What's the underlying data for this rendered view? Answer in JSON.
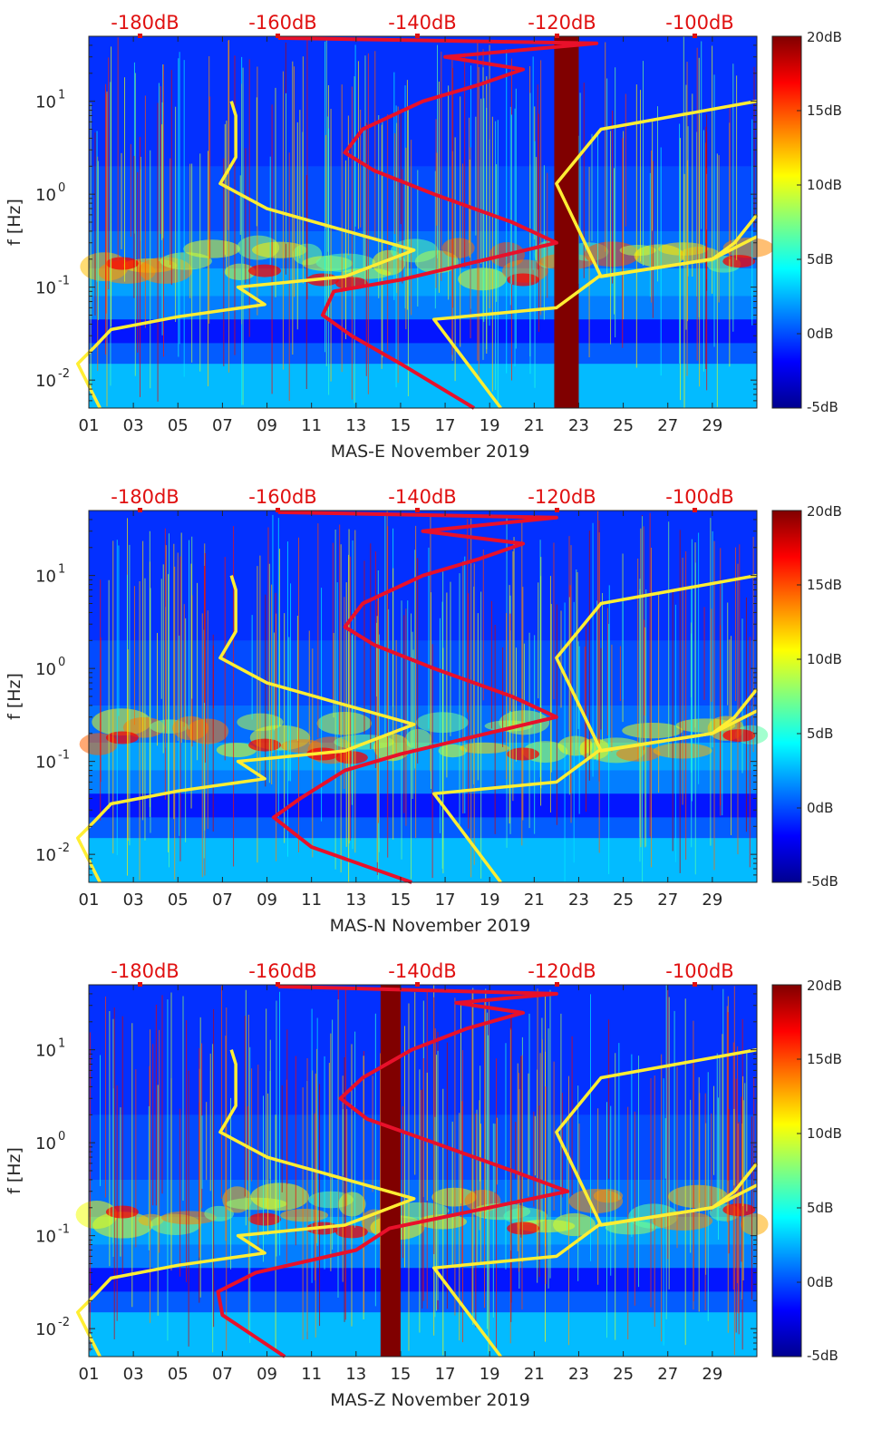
{
  "chart_data": [
    {
      "type": "heatmap",
      "station": "MAS-E",
      "xlabel": "MAS-E November 2019",
      "ylabel": "f [Hz]",
      "x_ticks": [
        "01",
        "03",
        "05",
        "07",
        "09",
        "11",
        "13",
        "15",
        "17",
        "19",
        "21",
        "23",
        "25",
        "27",
        "29"
      ],
      "x_tick_days": [
        1,
        3,
        5,
        7,
        9,
        11,
        13,
        15,
        17,
        19,
        21,
        23,
        25,
        27,
        29
      ],
      "xlim": [
        1,
        31
      ],
      "y_scale": "log",
      "ylim": [
        0.005,
        50
      ],
      "y_ticks": [
        {
          "base": "10",
          "exp": "-2",
          "v": 0.01
        },
        {
          "base": "10",
          "exp": "-1",
          "v": 0.1
        },
        {
          "base": "10",
          "exp": "0",
          "v": 1
        },
        {
          "base": "10",
          "exp": "1",
          "v": 10
        }
      ],
      "top_axis_labels": [
        "-180dB",
        "-160dB",
        "-140dB",
        "-120dB",
        "-100dB"
      ],
      "colorbar": {
        "labels": [
          "20dB",
          "15dB",
          "10dB",
          "5dB",
          "0dB",
          "-5dB"
        ],
        "range": [
          -5,
          20
        ],
        "colormap": "jet"
      },
      "gap_band": {
        "day_start": 21.9,
        "day_end": 23.0,
        "color": "#800000"
      },
      "yellow_curve": {
        "segment_1": {
          "day": [
            7.4,
            7.6,
            7.6,
            6.9,
            9.0,
            15.6,
            12.5,
            7.7,
            8.9,
            5.0,
            2.0,
            1.2,
            0.5,
            1.5
          ],
          "f": [
            10,
            7,
            2.5,
            1.3,
            0.7,
            0.25,
            0.13,
            0.1,
            0.065,
            0.048,
            0.035,
            0.022,
            0.015,
            0.005
          ]
        },
        "segment_2": {
          "day": [
            19.5,
            16.5,
            22.0,
            23.9,
            29.0,
            30.0,
            31.0
          ],
          "f": [
            0.005,
            0.045,
            0.06,
            0.13,
            0.2,
            0.3,
            0.6
          ]
        },
        "segment_3": {
          "day": [
            31.0,
            29.0,
            24.0,
            22.0,
            24.0,
            31.0
          ],
          "f": [
            0.35,
            0.2,
            0.13,
            1.3,
            5,
            10
          ]
        }
      },
      "red_curve": {
        "day": [
          18.3,
          15.0,
          12.8,
          11.5,
          12.0,
          15.0,
          22.0,
          20.0,
          16.5,
          13.8,
          12.5,
          13.3,
          16.0,
          18.5,
          20.5,
          17.0,
          23.8,
          9.5
        ],
        "f": [
          0.005,
          0.015,
          0.03,
          0.05,
          0.09,
          0.12,
          0.3,
          0.5,
          1.0,
          1.8,
          2.8,
          5.0,
          10.0,
          15.0,
          22.0,
          30.0,
          42.0,
          48.0
        ]
      }
    },
    {
      "type": "heatmap",
      "station": "MAS-N",
      "xlabel": "MAS-N November 2019",
      "ylabel": "f [Hz]",
      "x_ticks": [
        "01",
        "03",
        "05",
        "07",
        "09",
        "11",
        "13",
        "15",
        "17",
        "19",
        "21",
        "23",
        "25",
        "27",
        "29"
      ],
      "x_tick_days": [
        1,
        3,
        5,
        7,
        9,
        11,
        13,
        15,
        17,
        19,
        21,
        23,
        25,
        27,
        29
      ],
      "xlim": [
        1,
        31
      ],
      "y_scale": "log",
      "ylim": [
        0.005,
        50
      ],
      "y_ticks": [
        {
          "base": "10",
          "exp": "-2",
          "v": 0.01
        },
        {
          "base": "10",
          "exp": "-1",
          "v": 0.1
        },
        {
          "base": "10",
          "exp": "0",
          "v": 1
        },
        {
          "base": "10",
          "exp": "1",
          "v": 10
        }
      ],
      "top_axis_labels": [
        "-180dB",
        "-160dB",
        "-140dB",
        "-120dB",
        "-100dB"
      ],
      "colorbar": {
        "labels": [
          "20dB",
          "15dB",
          "10dB",
          "5dB",
          "0dB",
          "-5dB"
        ],
        "range": [
          -5,
          20
        ],
        "colormap": "jet"
      },
      "gap_band": null,
      "yellow_curve": {
        "segment_1": {
          "day": [
            7.4,
            7.6,
            7.6,
            6.9,
            9.0,
            15.6,
            12.5,
            7.7,
            8.9,
            5.0,
            2.0,
            1.2,
            0.5,
            1.5
          ],
          "f": [
            10,
            7,
            2.5,
            1.3,
            0.7,
            0.25,
            0.13,
            0.1,
            0.065,
            0.048,
            0.035,
            0.022,
            0.015,
            0.005
          ]
        },
        "segment_2": {
          "day": [
            19.5,
            16.5,
            22.0,
            23.9,
            29.0,
            30.0,
            31.0
          ],
          "f": [
            0.005,
            0.045,
            0.06,
            0.13,
            0.2,
            0.3,
            0.6
          ]
        },
        "segment_3": {
          "day": [
            31.0,
            29.0,
            24.0,
            22.0,
            24.0,
            31.0
          ],
          "f": [
            0.35,
            0.2,
            0.13,
            1.3,
            5,
            10
          ]
        }
      },
      "red_curve": {
        "day": [
          15.5,
          11.0,
          9.3,
          10.5,
          12.5,
          15.0,
          22.0,
          20.0,
          16.5,
          13.8,
          12.5,
          13.3,
          16.0,
          18.5,
          20.5,
          16.0,
          22.0,
          9.5
        ],
        "f": [
          0.005,
          0.012,
          0.025,
          0.04,
          0.08,
          0.12,
          0.3,
          0.5,
          1.0,
          1.8,
          2.8,
          5.0,
          10.0,
          15.0,
          22.0,
          30.0,
          42.0,
          48.0
        ]
      }
    },
    {
      "type": "heatmap",
      "station": "MAS-Z",
      "xlabel": "MAS-Z November 2019",
      "ylabel": "f [Hz]",
      "x_ticks": [
        "01",
        "03",
        "05",
        "07",
        "09",
        "11",
        "13",
        "15",
        "17",
        "19",
        "21",
        "23",
        "25",
        "27",
        "29"
      ],
      "x_tick_days": [
        1,
        3,
        5,
        7,
        9,
        11,
        13,
        15,
        17,
        19,
        21,
        23,
        25,
        27,
        29
      ],
      "xlim": [
        1,
        31
      ],
      "y_scale": "log",
      "ylim": [
        0.005,
        50
      ],
      "y_ticks": [
        {
          "base": "10",
          "exp": "-2",
          "v": 0.01
        },
        {
          "base": "10",
          "exp": "-1",
          "v": 0.1
        },
        {
          "base": "10",
          "exp": "0",
          "v": 1
        },
        {
          "base": "10",
          "exp": "1",
          "v": 10
        }
      ],
      "top_axis_labels": [
        "-180dB",
        "-160dB",
        "-140dB",
        "-120dB",
        "-100dB"
      ],
      "colorbar": {
        "labels": [
          "20dB",
          "15dB",
          "10dB",
          "5dB",
          "0dB",
          "-5dB"
        ],
        "range": [
          -5,
          20
        ],
        "colormap": "jet"
      },
      "gap_band": {
        "day_start": 14.1,
        "day_end": 15.0,
        "color": "#800000"
      },
      "yellow_curve": {
        "segment_1": {
          "day": [
            7.4,
            7.6,
            7.6,
            6.9,
            9.0,
            15.6,
            12.5,
            7.7,
            8.9,
            5.0,
            2.0,
            1.2,
            0.5,
            1.5
          ],
          "f": [
            10,
            7,
            2.5,
            1.3,
            0.7,
            0.25,
            0.13,
            0.1,
            0.065,
            0.048,
            0.035,
            0.022,
            0.015,
            0.005
          ]
        },
        "segment_2": {
          "day": [
            19.5,
            16.5,
            22.0,
            23.9,
            29.0,
            30.0,
            31.0
          ],
          "f": [
            0.005,
            0.045,
            0.06,
            0.13,
            0.2,
            0.3,
            0.6
          ]
        },
        "segment_3": {
          "day": [
            31.0,
            29.0,
            24.0,
            22.0,
            24.0,
            31.0
          ],
          "f": [
            0.35,
            0.2,
            0.13,
            1.3,
            5,
            10
          ]
        }
      },
      "red_curve": {
        "day": [
          9.8,
          7.0,
          6.8,
          8.5,
          13.0,
          14.5,
          22.5,
          20.0,
          16.5,
          13.5,
          12.3,
          13.3,
          15.5,
          18.0,
          20.5,
          17.5,
          22.0,
          9.5
        ],
        "f": [
          0.005,
          0.014,
          0.025,
          0.04,
          0.07,
          0.12,
          0.3,
          0.5,
          1.0,
          1.8,
          3.0,
          5.0,
          10.0,
          17.0,
          25.0,
          32.0,
          40.0,
          48.0
        ]
      }
    }
  ]
}
